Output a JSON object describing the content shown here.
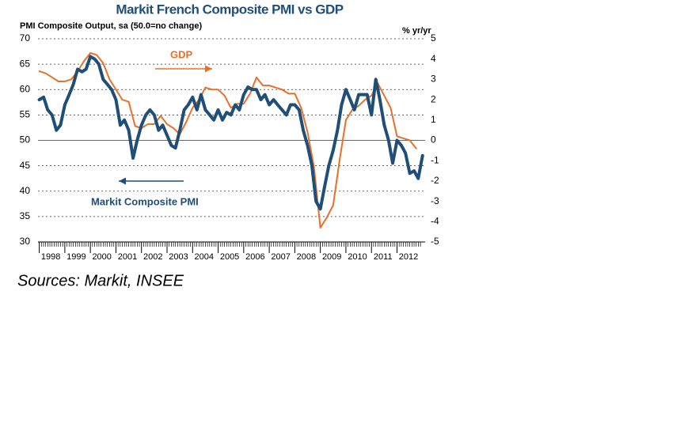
{
  "chart_data": {
    "type": "line",
    "title": "Markit French Composite PMI vs GDP",
    "y_label": "PMI Composite Output, sa (50.0=no change)",
    "y2_label": "% yr/yr",
    "source": "Sources: Markit, INSEE",
    "xlim": [
      1997.95,
      2013.1
    ],
    "xticks": [
      {
        "value": 1998,
        "label": "1998"
      },
      {
        "value": 1999,
        "label": "1999"
      },
      {
        "value": 2000,
        "label": "2000"
      },
      {
        "value": 2001,
        "label": "2001"
      },
      {
        "value": 2002,
        "label": "2002"
      },
      {
        "value": 2003,
        "label": "2003"
      },
      {
        "value": 2004,
        "label": "2004"
      },
      {
        "value": 2005,
        "label": "2005"
      },
      {
        "value": 2006,
        "label": "2006"
      },
      {
        "value": 2007,
        "label": "2007"
      },
      {
        "value": 2008,
        "label": "2008"
      },
      {
        "value": 2009,
        "label": "2009"
      },
      {
        "value": 2010,
        "label": "2010"
      },
      {
        "value": 2011,
        "label": "2011"
      },
      {
        "value": 2012,
        "label": "2012"
      }
    ],
    "ylim": [
      30,
      70
    ],
    "yticks": [
      30,
      35,
      40,
      45,
      50,
      55,
      60,
      65,
      70
    ],
    "y2lim": [
      -5,
      5
    ],
    "y2ticks": [
      -5,
      -4,
      -3,
      -2,
      -1,
      0,
      1,
      2,
      3,
      4,
      5
    ],
    "grid": true,
    "series": [
      {
        "name": "Markit Composite PMI",
        "color": "#1f4e79",
        "x": [
          1998,
          1998.17,
          1998.33,
          1998.5,
          1998.67,
          1998.83,
          1999,
          1999.17,
          1999.33,
          1999.5,
          1999.67,
          1999.83,
          2000,
          2000.17,
          2000.33,
          2000.5,
          2000.67,
          2000.83,
          2001,
          2001.17,
          2001.33,
          2001.5,
          2001.67,
          2001.83,
          2002,
          2002.17,
          2002.33,
          2002.5,
          2002.67,
          2002.83,
          2003,
          2003.17,
          2003.33,
          2003.5,
          2003.67,
          2003.83,
          2004,
          2004.17,
          2004.33,
          2004.5,
          2004.67,
          2004.83,
          2005,
          2005.17,
          2005.33,
          2005.5,
          2005.67,
          2005.83,
          2006,
          2006.17,
          2006.33,
          2006.5,
          2006.67,
          2006.83,
          2007,
          2007.17,
          2007.33,
          2007.5,
          2007.67,
          2007.83,
          2008,
          2008.17,
          2008.33,
          2008.5,
          2008.67,
          2008.83,
          2009,
          2009.17,
          2009.33,
          2009.5,
          2009.67,
          2009.83,
          2010,
          2010.17,
          2010.33,
          2010.5,
          2010.67,
          2010.83,
          2011,
          2011.17,
          2011.33,
          2011.5,
          2011.67,
          2011.83,
          2012,
          2012.17,
          2012.33,
          2012.5,
          2012.67,
          2012.83,
          2013
        ],
        "values": [
          58,
          58.5,
          56,
          55,
          52,
          53,
          57,
          59,
          61,
          64,
          63.5,
          64,
          66.5,
          66,
          65,
          62,
          61,
          60,
          58,
          53,
          54,
          52,
          46.5,
          50,
          53,
          55,
          56,
          55,
          52,
          53,
          51,
          49,
          48.5,
          52,
          56,
          57,
          58.5,
          56,
          59,
          56,
          55,
          54,
          56,
          54,
          55.5,
          55,
          57,
          56,
          59,
          60.5,
          60,
          60,
          58,
          59,
          57,
          58,
          57,
          56,
          55,
          57,
          57,
          56,
          52,
          49,
          45,
          38,
          36.5,
          41,
          45,
          48,
          52,
          57,
          60,
          58,
          56,
          59,
          59,
          59,
          55,
          62,
          58,
          53,
          50,
          45.5,
          50,
          49,
          47.5,
          43.5,
          44,
          42.5,
          47
        ]
      },
      {
        "name": "GDP",
        "color": "#e8702a",
        "axis": "y2",
        "x": [
          1998,
          1998.25,
          1998.5,
          1998.75,
          1999,
          1999.25,
          1999.5,
          1999.75,
          2000,
          2000.25,
          2000.5,
          2000.75,
          2001,
          2001.25,
          2001.5,
          2001.75,
          2002,
          2002.25,
          2002.5,
          2002.75,
          2003,
          2003.25,
          2003.5,
          2003.75,
          2004,
          2004.25,
          2004.5,
          2004.75,
          2005,
          2005.25,
          2005.5,
          2005.75,
          2006,
          2006.25,
          2006.5,
          2006.75,
          2007,
          2007.25,
          2007.5,
          2007.75,
          2008,
          2008.25,
          2008.5,
          2008.75,
          2009,
          2009.25,
          2009.5,
          2009.75,
          2010,
          2010.25,
          2010.5,
          2010.75,
          2011,
          2011.25,
          2011.5,
          2011.75,
          2012,
          2012.25,
          2012.5,
          2012.75
        ],
        "values": [
          3.4,
          3.3,
          3.1,
          2.9,
          2.9,
          3.0,
          3.4,
          3.9,
          4.3,
          4.2,
          3.8,
          3.0,
          2.5,
          2.0,
          1.9,
          0.7,
          0.6,
          0.8,
          0.8,
          1.2,
          0.8,
          0.6,
          0.3,
          0.9,
          1.6,
          2.0,
          2.6,
          2.5,
          2.5,
          2.2,
          1.6,
          1.8,
          1.8,
          2.3,
          3.1,
          2.7,
          2.7,
          2.6,
          2.5,
          2.3,
          2.3,
          1.6,
          0.4,
          -1.3,
          -4.3,
          -3.8,
          -3.2,
          -1.0,
          1.0,
          1.5,
          1.7,
          2.0,
          2.2,
          2.8,
          2.2,
          1.6,
          0.2,
          0.1,
          0.0,
          -0.4
        ]
      }
    ]
  }
}
